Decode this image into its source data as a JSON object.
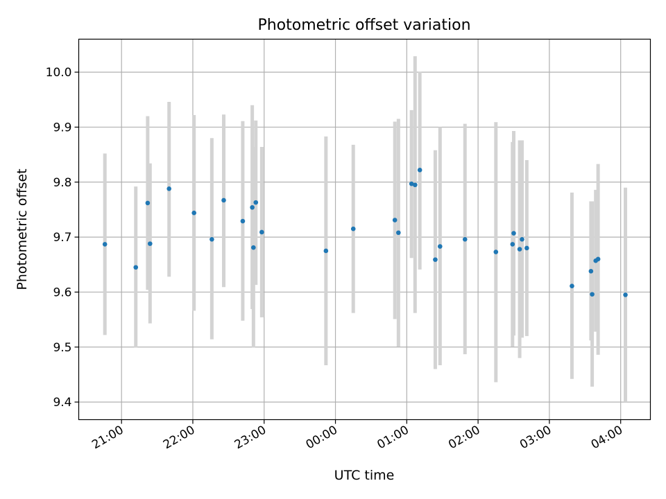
{
  "chart_data": {
    "type": "scatter",
    "title": "Photometric offset variation",
    "xlabel": "UTC time",
    "ylabel": "Photometric offset",
    "x_tick_labels": [
      "21:00",
      "22:00",
      "23:00",
      "00:00",
      "01:00",
      "02:00",
      "03:00",
      "04:00"
    ],
    "y_tick_labels": [
      "9.4",
      "9.5",
      "9.6",
      "9.7",
      "9.8",
      "9.9",
      "10.0"
    ],
    "xlim": [
      "20:24",
      "04:25"
    ],
    "ylim": [
      9.368,
      10.06
    ],
    "grid": true,
    "series": [
      {
        "color": "#1f77b4",
        "errorbar_color": "#d3d3d3",
        "points": [
          {
            "x": "20:46",
            "y": 9.687,
            "yerr_low": 9.522,
            "yerr_high": 9.852
          },
          {
            "x": "21:12",
            "y": 9.645,
            "yerr_low": 9.499,
            "yerr_high": 9.792
          },
          {
            "x": "21:22",
            "y": 9.762,
            "yerr_low": 9.604,
            "yerr_high": 9.92
          },
          {
            "x": "21:24",
            "y": 9.688,
            "yerr_low": 9.543,
            "yerr_high": 9.834
          },
          {
            "x": "21:40",
            "y": 9.788,
            "yerr_low": 9.628,
            "yerr_high": 9.946
          },
          {
            "x": "22:01",
            "y": 9.744,
            "yerr_low": 9.566,
            "yerr_high": 9.922
          },
          {
            "x": "22:16",
            "y": 9.696,
            "yerr_low": 9.514,
            "yerr_high": 9.88
          },
          {
            "x": "22:26",
            "y": 9.767,
            "yerr_low": 9.609,
            "yerr_high": 9.923
          },
          {
            "x": "22:42",
            "y": 9.729,
            "yerr_low": 9.548,
            "yerr_high": 9.911
          },
          {
            "x": "22:50",
            "y": 9.754,
            "yerr_low": 9.569,
            "yerr_high": 9.94
          },
          {
            "x": "22:51",
            "y": 9.681,
            "yerr_low": 9.499,
            "yerr_high": 9.864
          },
          {
            "x": "22:53",
            "y": 9.763,
            "yerr_low": 9.613,
            "yerr_high": 9.912
          },
          {
            "x": "22:58",
            "y": 9.709,
            "yerr_low": 9.554,
            "yerr_high": 9.864
          },
          {
            "x": "23:52",
            "y": 9.675,
            "yerr_low": 9.467,
            "yerr_high": 9.883
          },
          {
            "x": "00:15",
            "y": 9.715,
            "yerr_low": 9.562,
            "yerr_high": 9.868
          },
          {
            "x": "00:50",
            "y": 9.731,
            "yerr_low": 9.551,
            "yerr_high": 9.91
          },
          {
            "x": "00:53",
            "y": 9.708,
            "yerr_low": 9.501,
            "yerr_high": 9.915
          },
          {
            "x": "01:04",
            "y": 9.797,
            "yerr_low": 9.662,
            "yerr_high": 9.931
          },
          {
            "x": "01:07",
            "y": 9.795,
            "yerr_low": 9.562,
            "yerr_high": 10.029
          },
          {
            "x": "01:11",
            "y": 9.822,
            "yerr_low": 9.641,
            "yerr_high": 10.001
          },
          {
            "x": "01:24",
            "y": 9.659,
            "yerr_low": 9.46,
            "yerr_high": 9.858
          },
          {
            "x": "01:28",
            "y": 9.683,
            "yerr_low": 9.467,
            "yerr_high": 9.9
          },
          {
            "x": "01:49",
            "y": 9.696,
            "yerr_low": 9.487,
            "yerr_high": 9.906
          },
          {
            "x": "02:15",
            "y": 9.673,
            "yerr_low": 9.436,
            "yerr_high": 9.909
          },
          {
            "x": "02:29",
            "y": 9.687,
            "yerr_low": 9.501,
            "yerr_high": 9.873
          },
          {
            "x": "02:30",
            "y": 9.707,
            "yerr_low": 9.521,
            "yerr_high": 9.893
          },
          {
            "x": "02:35",
            "y": 9.678,
            "yerr_low": 9.48,
            "yerr_high": 9.876
          },
          {
            "x": "02:37",
            "y": 9.696,
            "yerr_low": 9.517,
            "yerr_high": 9.876
          },
          {
            "x": "02:41",
            "y": 9.68,
            "yerr_low": 9.52,
            "yerr_high": 9.84
          },
          {
            "x": "03:19",
            "y": 9.611,
            "yerr_low": 9.442,
            "yerr_high": 9.781
          },
          {
            "x": "03:35",
            "y": 9.638,
            "yerr_low": 9.512,
            "yerr_high": 9.765
          },
          {
            "x": "03:36",
            "y": 9.596,
            "yerr_low": 9.428,
            "yerr_high": 9.765
          },
          {
            "x": "03:39",
            "y": 9.657,
            "yerr_low": 9.528,
            "yerr_high": 9.786
          },
          {
            "x": "03:41",
            "y": 9.66,
            "yerr_low": 9.486,
            "yerr_high": 9.833
          },
          {
            "x": "04:04",
            "y": 9.595,
            "yerr_low": 9.4,
            "yerr_high": 9.79
          }
        ]
      }
    ]
  }
}
